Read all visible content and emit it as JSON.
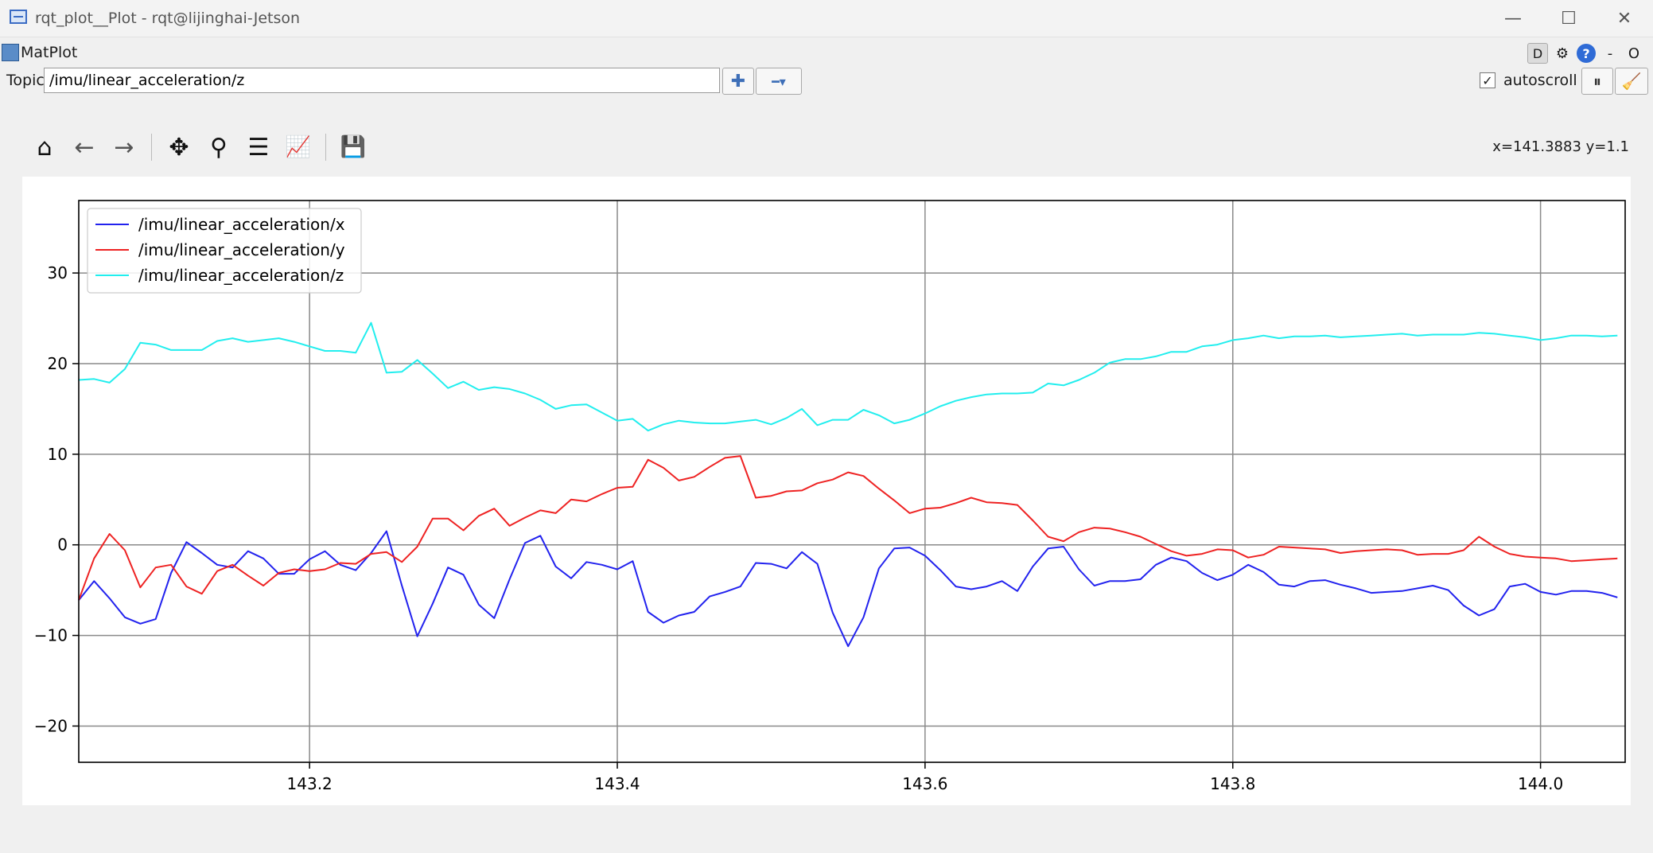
{
  "window": {
    "title": "rqt_plot__Plot - rqt@lijinghai-Jetson",
    "min_glyph": "—",
    "max_glyph": "☐",
    "close_glyph": "✕"
  },
  "plugin": {
    "title": "MatPlot",
    "d_label": "D",
    "gear_glyph": "⚙",
    "help_label": "?",
    "dash_label": "-",
    "o_label": "O"
  },
  "topic": {
    "label": "Topic",
    "value": "/imu/linear_acceleration/z",
    "add_glyph": "✚",
    "remove_glyph": "━▾"
  },
  "autoscroll": {
    "label": "autoscroll",
    "checked": true,
    "check_glyph": "✓",
    "pause_glyph": "⏸",
    "clear_glyph": "🧹"
  },
  "toolbar": {
    "home_glyph": "⌂",
    "back_glyph": "←",
    "forward_glyph": "→",
    "pan_glyph": "✥",
    "zoom_glyph": "⚲",
    "subplots_glyph": "☰",
    "customize_glyph": "📈",
    "save_glyph": "💾",
    "coords": "x=141.3883 y=1.1"
  },
  "chart_data": {
    "type": "line",
    "xlim": [
      143.05,
      144.055
    ],
    "ylim": [
      -24,
      38
    ],
    "grid": true,
    "legend_placement": "top-left",
    "xticks": [
      143.2,
      143.4,
      143.6,
      143.8,
      144.0
    ],
    "xtick_labels": [
      "143.2",
      "143.4",
      "143.6",
      "143.8",
      "144.0"
    ],
    "yticks": [
      -20,
      -10,
      0,
      10,
      20,
      30
    ],
    "ytick_labels": [
      "−20",
      "−10",
      "0",
      "10",
      "20",
      "30"
    ],
    "x_start": 143.05,
    "x_step": 0.01,
    "series": [
      {
        "name": "/imu/linear_acceleration/x",
        "color": "#2222ee",
        "values": [
          -6.1,
          -4.0,
          -5.9,
          -8.0,
          -8.7,
          -8.2,
          -3.1,
          0.3,
          -0.9,
          -2.2,
          -2.5,
          -0.7,
          -1.5,
          -3.2,
          -3.2,
          -1.6,
          -0.7,
          -2.2,
          -2.8,
          -0.9,
          1.5,
          -4.5,
          -10.1,
          -6.5,
          -2.5,
          -3.3,
          -6.6,
          -8.1,
          -3.8,
          0.2,
          1.0,
          -2.4,
          -3.7,
          -1.9,
          -2.2,
          -2.7,
          -1.8,
          -7.4,
          -8.6,
          -7.8,
          -7.4,
          -5.7,
          -5.2,
          -4.6,
          -2.0,
          -2.1,
          -2.6,
          -0.8,
          -2.1,
          -7.5,
          -11.2,
          -8.0,
          -2.6,
          -0.4,
          -0.3,
          -1.2,
          -2.8,
          -4.6,
          -4.9,
          -4.6,
          -4.0,
          -5.1,
          -2.4,
          -0.4,
          -0.2,
          -2.7,
          -4.5,
          -4.0,
          -4.0,
          -3.8,
          -2.2,
          -1.4,
          -1.8,
          -3.1,
          -3.9,
          -3.3,
          -2.2,
          -3.0,
          -4.4,
          -4.6,
          -4.0,
          -3.9,
          -4.4,
          -4.8,
          -5.3,
          -5.2,
          -5.1,
          -4.8,
          -4.5,
          -5.0,
          -6.7,
          -7.8,
          -7.1,
          -4.6,
          -4.3,
          -5.2,
          -5.5,
          -5.1,
          -5.1,
          -5.3,
          -5.8
        ]
      },
      {
        "name": "/imu/linear_acceleration/y",
        "color": "#ee2222",
        "values": [
          -6.1,
          -1.5,
          1.2,
          -0.6,
          -4.7,
          -2.5,
          -2.2,
          -4.6,
          -5.4,
          -2.9,
          -2.2,
          -3.4,
          -4.5,
          -3.1,
          -2.7,
          -2.9,
          -2.7,
          -2.0,
          -2.1,
          -1.0,
          -0.8,
          -1.9,
          -0.2,
          2.9,
          2.9,
          1.6,
          3.2,
          4.0,
          2.1,
          3.0,
          3.8,
          3.5,
          5.0,
          4.8,
          5.6,
          6.3,
          6.4,
          9.4,
          8.5,
          7.1,
          7.5,
          8.6,
          9.6,
          9.8,
          5.2,
          5.4,
          5.9,
          6.0,
          6.8,
          7.2,
          8.0,
          7.6,
          6.2,
          4.9,
          3.5,
          4.0,
          4.1,
          4.6,
          5.2,
          4.7,
          4.6,
          4.4,
          2.7,
          0.9,
          0.4,
          1.4,
          1.9,
          1.8,
          1.4,
          0.9,
          0.1,
          -0.7,
          -1.2,
          -1.0,
          -0.5,
          -0.6,
          -1.4,
          -1.1,
          -0.2,
          -0.3,
          -0.4,
          -0.5,
          -0.9,
          -0.7,
          -0.6,
          -0.5,
          -0.6,
          -1.1,
          -1.0,
          -1.0,
          -0.6,
          0.9,
          -0.2,
          -1.0,
          -1.3,
          -1.4,
          -1.5,
          -1.8,
          -1.7,
          -1.6,
          -1.5
        ]
      },
      {
        "name": "/imu/linear_acceleration/z",
        "color": "#22eeee",
        "values": [
          18.2,
          18.3,
          17.9,
          19.4,
          22.3,
          22.1,
          21.5,
          21.5,
          21.5,
          22.5,
          22.8,
          22.4,
          22.6,
          22.8,
          22.4,
          21.9,
          21.4,
          21.4,
          21.2,
          24.5,
          19.0,
          19.1,
          20.4,
          18.9,
          17.3,
          18.0,
          17.1,
          17.4,
          17.2,
          16.7,
          16.0,
          15.0,
          15.4,
          15.5,
          14.6,
          13.7,
          13.9,
          12.6,
          13.3,
          13.7,
          13.5,
          13.4,
          13.4,
          13.6,
          13.8,
          13.3,
          14.0,
          15.0,
          13.2,
          13.8,
          13.8,
          14.9,
          14.3,
          13.4,
          13.8,
          14.5,
          15.3,
          15.9,
          16.3,
          16.6,
          16.7,
          16.7,
          16.8,
          17.8,
          17.6,
          18.2,
          19.0,
          20.1,
          20.5,
          20.5,
          20.8,
          21.3,
          21.3,
          21.9,
          22.1,
          22.6,
          22.8,
          23.1,
          22.8,
          23.0,
          23.0,
          23.1,
          22.9,
          23.0,
          23.1,
          23.2,
          23.3,
          23.1,
          23.2,
          23.2,
          23.2,
          23.4,
          23.3,
          23.1,
          22.9,
          22.6,
          22.8,
          23.1,
          23.1,
          23.0,
          23.1
        ]
      }
    ]
  }
}
